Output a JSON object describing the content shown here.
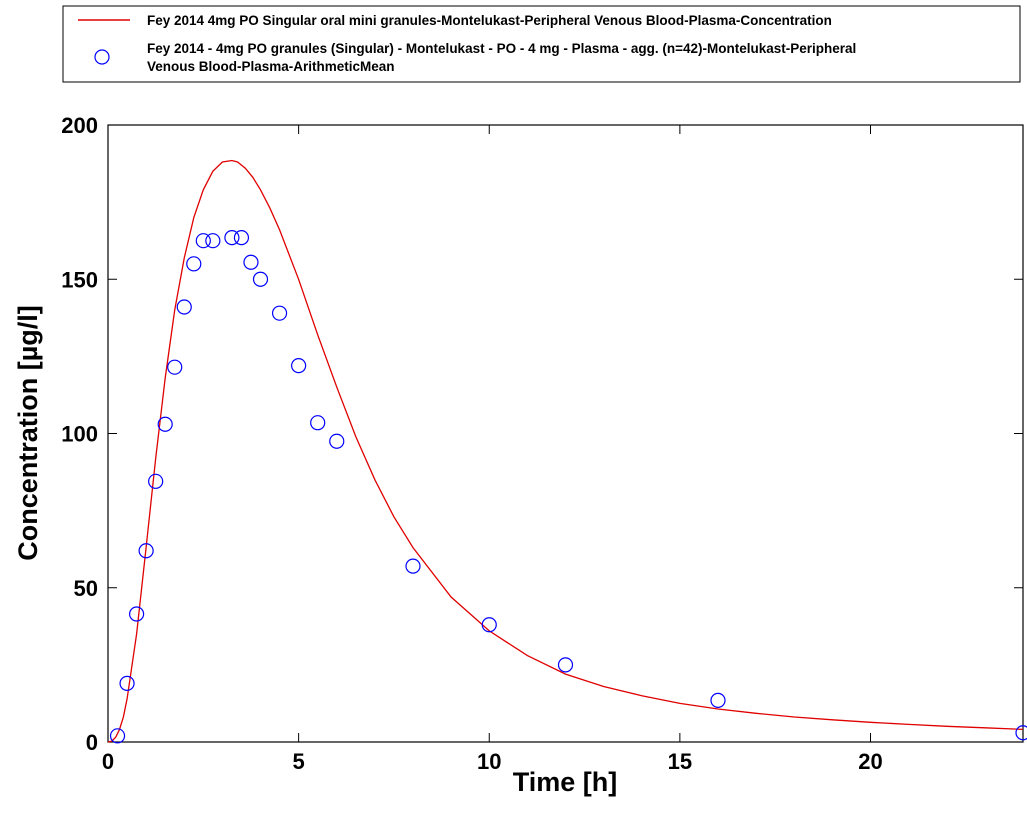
{
  "chart_data": {
    "type": "line",
    "title": "",
    "xlabel": "Time [h]",
    "ylabel": "Concentration [µg/l]",
    "xlim": [
      0,
      24
    ],
    "ylim": [
      0,
      200
    ],
    "xticks": [
      0,
      5,
      10,
      15,
      20
    ],
    "yticks": [
      0,
      50,
      100,
      150,
      200
    ],
    "grid": false,
    "legend_position": "top-outside",
    "series": [
      {
        "name": "Fey 2014 4mg PO Singular oral mini granules-Montelukast-Peripheral Venous Blood-Plasma-Concentration",
        "kind": "line",
        "color": "#e00000",
        "x": [
          0,
          0.1,
          0.2,
          0.3,
          0.4,
          0.5,
          0.75,
          1.0,
          1.25,
          1.5,
          1.75,
          2.0,
          2.25,
          2.5,
          2.75,
          3.0,
          3.25,
          3.4,
          3.6,
          3.8,
          4.0,
          4.25,
          4.5,
          5.0,
          5.5,
          6.0,
          6.5,
          7.0,
          7.5,
          8.0,
          9.0,
          10.0,
          11.0,
          12.0,
          13.0,
          14.0,
          15.0,
          16.0,
          17.0,
          18.0,
          19.0,
          20.0,
          21.0,
          22.0,
          23.0,
          24.0
        ],
        "y": [
          0,
          0.3,
          1.5,
          4,
          8,
          14,
          35,
          63,
          92,
          118,
          140,
          157,
          170,
          179,
          185,
          188,
          188.5,
          188,
          186,
          183,
          179,
          173,
          166,
          150,
          132,
          115,
          99,
          85,
          73,
          63,
          47,
          36,
          28,
          22,
          18,
          15,
          12.5,
          10.7,
          9.3,
          8.1,
          7.2,
          6.4,
          5.7,
          5.1,
          4.6,
          4.1
        ]
      },
      {
        "name": "Fey 2014 - 4mg PO granules (Singular) - Montelukast - PO - 4 mg - Plasma - agg. (n=42)-Montelukast-Peripheral Venous Blood-Plasma-ArithmeticMean",
        "kind": "scatter",
        "marker": "open-circle",
        "color": "#0000ff",
        "x": [
          0.25,
          0.5,
          0.75,
          1.0,
          1.25,
          1.5,
          1.75,
          2.0,
          2.25,
          2.5,
          2.75,
          3.25,
          3.5,
          3.75,
          4.0,
          4.5,
          5.0,
          5.5,
          6.0,
          8.0,
          10.0,
          12.0,
          16.0,
          24.0
        ],
        "y": [
          2,
          19,
          41.5,
          62,
          84.5,
          103,
          121.5,
          141,
          155,
          162.5,
          162.5,
          163.5,
          163.5,
          155.5,
          150,
          139,
          122,
          103.5,
          97.5,
          57,
          38,
          25,
          13.5,
          3
        ]
      }
    ]
  }
}
